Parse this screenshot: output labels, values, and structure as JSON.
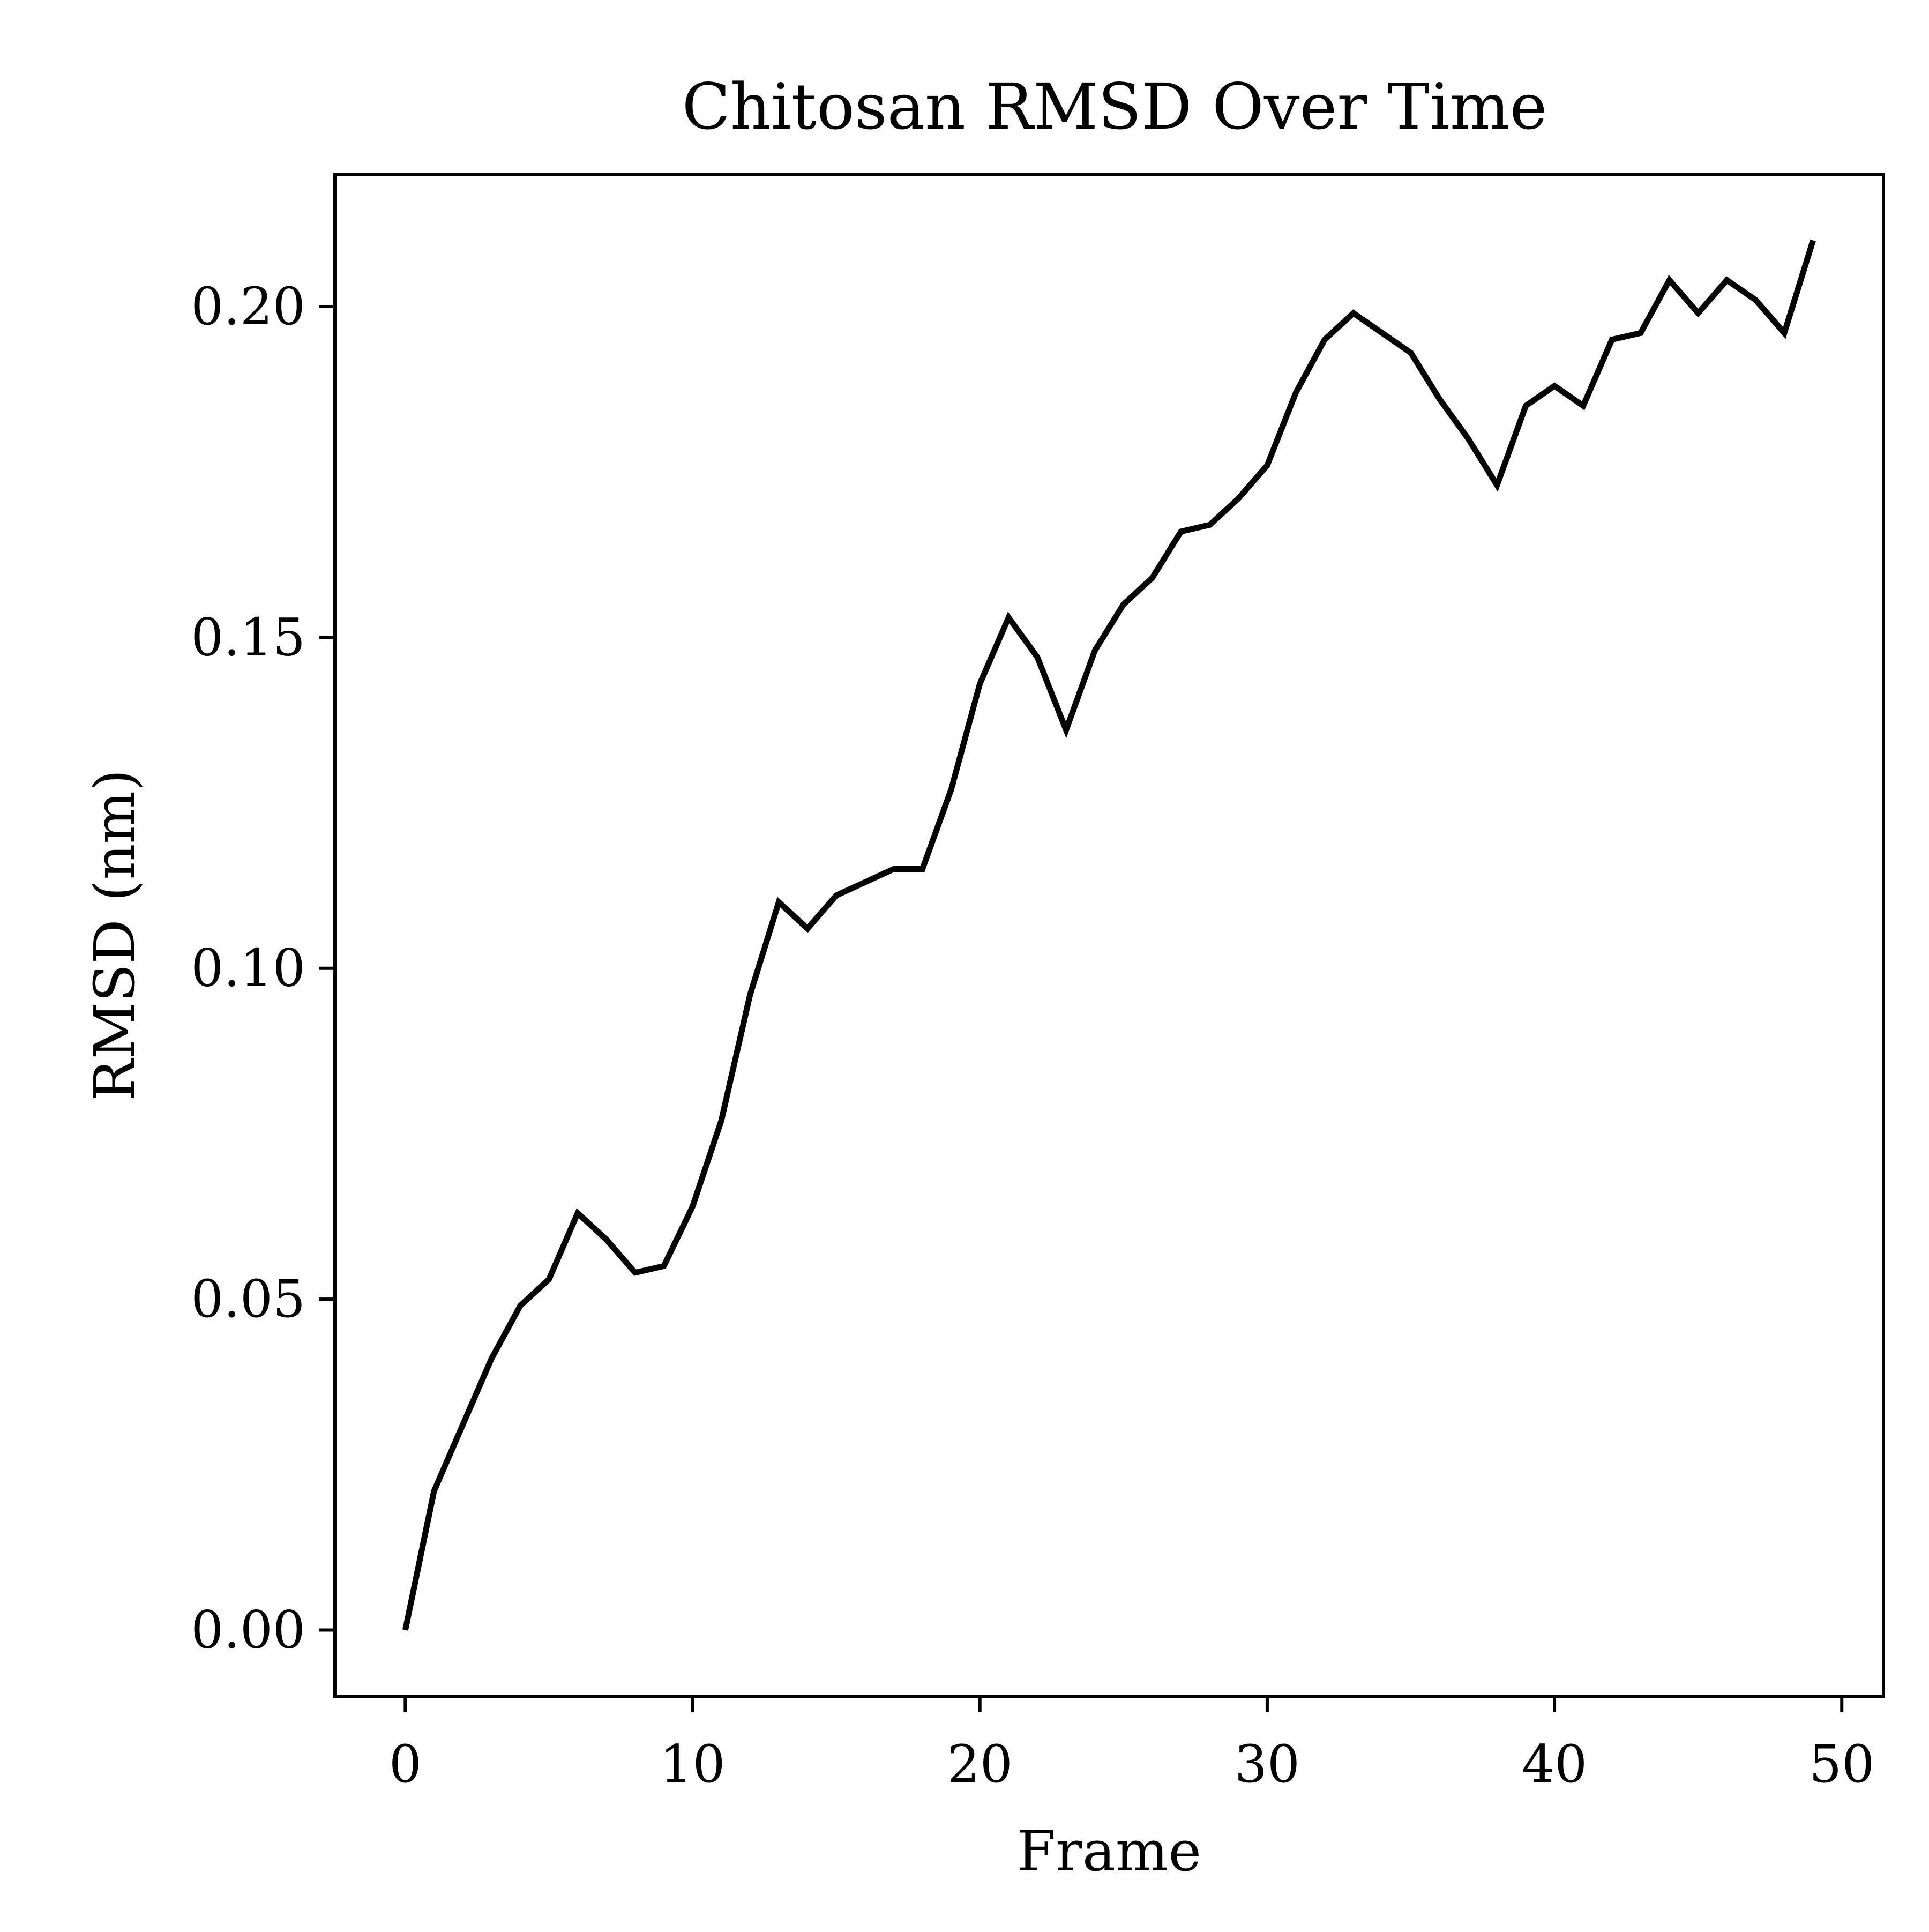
{
  "chart_data": {
    "type": "line",
    "title": "Chitosan RMSD Over Time",
    "xlabel": "Frame",
    "ylabel": "RMSD (nm)",
    "xlim": [
      -2.45,
      51.45
    ],
    "ylim": [
      -0.01,
      0.22
    ],
    "xticks": [
      0,
      10,
      20,
      30,
      40,
      50
    ],
    "yticks": [
      0.0,
      0.05,
      0.1,
      0.15,
      0.2
    ],
    "xtick_labels": [
      "0",
      "10",
      "20",
      "30",
      "40",
      "50"
    ],
    "ytick_labels": [
      "0.00",
      "0.05",
      "0.10",
      "0.15",
      "0.20"
    ],
    "grid": false,
    "legend": "none",
    "series": [
      {
        "color": "#000000",
        "x": [
          0,
          1,
          2,
          3,
          4,
          5,
          6,
          7,
          8,
          9,
          10,
          11,
          12,
          13,
          14,
          15,
          16,
          17,
          18,
          19,
          20,
          21,
          22,
          23,
          24,
          25,
          26,
          27,
          28,
          29,
          30,
          31,
          32,
          33,
          34,
          35,
          36,
          37,
          38,
          39,
          40,
          41,
          42,
          43,
          44,
          45,
          46,
          47,
          48,
          49
        ],
        "y": [
          0.0,
          0.021,
          0.031,
          0.041,
          0.049,
          0.053,
          0.063,
          0.059,
          0.054,
          0.055,
          0.064,
          0.077,
          0.096,
          0.11,
          0.106,
          0.111,
          0.113,
          0.115,
          0.115,
          0.127,
          0.143,
          0.153,
          0.147,
          0.136,
          0.148,
          0.155,
          0.159,
          0.166,
          0.167,
          0.171,
          0.176,
          0.187,
          0.195,
          0.199,
          0.196,
          0.193,
          0.186,
          0.18,
          0.173,
          0.185,
          0.188,
          0.185,
          0.195,
          0.196,
          0.204,
          0.199,
          0.204,
          0.201,
          0.196,
          0.21
        ]
      }
    ]
  }
}
